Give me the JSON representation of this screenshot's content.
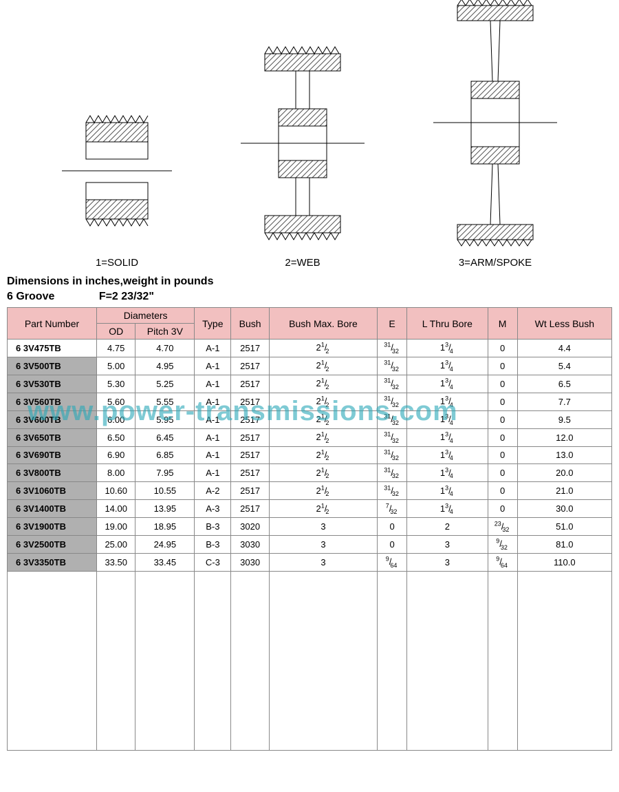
{
  "diagrams": {
    "labels": [
      "1=SOLID",
      "2=WEB",
      "3=ARM/SPOKE"
    ],
    "stroke_color": "#000000",
    "hatch_color": "#555555",
    "background_color": "#ffffff"
  },
  "heading": {
    "line1": "Dimensions in inches,weight in pounds",
    "groove": "6 Groove",
    "f_value": "F=2 23/32\""
  },
  "table": {
    "header_bg": "#f2c0c0",
    "border_color": "#888888",
    "partnum_shade": "#b0b0b0",
    "columns": {
      "part_number": "Part   Number",
      "diameters": "Diameters",
      "od": "OD",
      "pitch": "Pitch 3V",
      "type": "Type",
      "bush": "Bush",
      "bush_max_bore": "Bush Max. Bore",
      "e": "E",
      "l_thru_bore": "L Thru Bore",
      "m": "M",
      "wt": "Wt Less Bush"
    },
    "rows": [
      {
        "part": "6 3V475TB",
        "od": "4.75",
        "pitch": "4.70",
        "type": "A-1",
        "bush": "2517",
        "bore": "2|1|2",
        "e": "|31|32",
        "l": "1|3|4",
        "m": "0",
        "wt": "4.4"
      },
      {
        "part": "6 3V500TB",
        "od": "5.00",
        "pitch": "4.95",
        "type": "A-1",
        "bush": "2517",
        "bore": "2|1|2",
        "e": "|31|32",
        "l": "1|3|4",
        "m": "0",
        "wt": "5.4"
      },
      {
        "part": "6 3V530TB",
        "od": "5.30",
        "pitch": "5.25",
        "type": "A-1",
        "bush": "2517",
        "bore": "2|1|2",
        "e": "|31|32",
        "l": "1|3|4",
        "m": "0",
        "wt": "6.5"
      },
      {
        "part": "6 3V560TB",
        "od": "5.60",
        "pitch": "5.55",
        "type": "A-1",
        "bush": "2517",
        "bore": "2|1|2",
        "e": "|31|32",
        "l": "1|3|4",
        "m": "0",
        "wt": "7.7"
      },
      {
        "part": "6 3V600TB",
        "od": "6.00",
        "pitch": "5.95",
        "type": "A-1",
        "bush": "2517",
        "bore": "2|1|2",
        "e": "|31|32",
        "l": "1|3|4",
        "m": "0",
        "wt": "9.5"
      },
      {
        "part": "6 3V650TB",
        "od": "6.50",
        "pitch": "6.45",
        "type": "A-1",
        "bush": "2517",
        "bore": "2|1|2",
        "e": "|31|32",
        "l": "1|3|4",
        "m": "0",
        "wt": "12.0"
      },
      {
        "part": "6 3V690TB",
        "od": "6.90",
        "pitch": "6.85",
        "type": "A-1",
        "bush": "2517",
        "bore": "2|1|2",
        "e": "|31|32",
        "l": "1|3|4",
        "m": "0",
        "wt": "13.0"
      },
      {
        "part": "6 3V800TB",
        "od": "8.00",
        "pitch": "7.95",
        "type": "A-1",
        "bush": "2517",
        "bore": "2|1|2",
        "e": "|31|32",
        "l": "1|3|4",
        "m": "0",
        "wt": "20.0"
      },
      {
        "part": "6 3V1060TB",
        "od": "10.60",
        "pitch": "10.55",
        "type": "A-2",
        "bush": "2517",
        "bore": "2|1|2",
        "e": "|31|32",
        "l": "1|3|4",
        "m": "0",
        "wt": "21.0"
      },
      {
        "part": "6 3V1400TB",
        "od": "14.00",
        "pitch": "13.95",
        "type": "A-3",
        "bush": "2517",
        "bore": "2|1|2",
        "e": "|7|32",
        "l": "1|3|4",
        "m": "0",
        "wt": "30.0"
      },
      {
        "part": "6 3V1900TB",
        "od": "19.00",
        "pitch": "18.95",
        "type": "B-3",
        "bush": "3020",
        "bore": "3",
        "e": "0",
        "l": "2",
        "m": "|23|32",
        "wt": "51.0"
      },
      {
        "part": "6 3V2500TB",
        "od": "25.00",
        "pitch": "24.95",
        "type": "B-3",
        "bush": "3030",
        "bore": "3",
        "e": "0",
        "l": "3",
        "m": "|9|32",
        "wt": "81.0"
      },
      {
        "part": "6 3V3350TB",
        "od": "33.50",
        "pitch": "33.45",
        "type": "C-3",
        "bush": "3030",
        "bore": "3",
        "e": "|9|64",
        "l": "3",
        "m": "|9|64",
        "wt": "110.0"
      }
    ]
  },
  "watermark": "www.power-transmissions.com"
}
